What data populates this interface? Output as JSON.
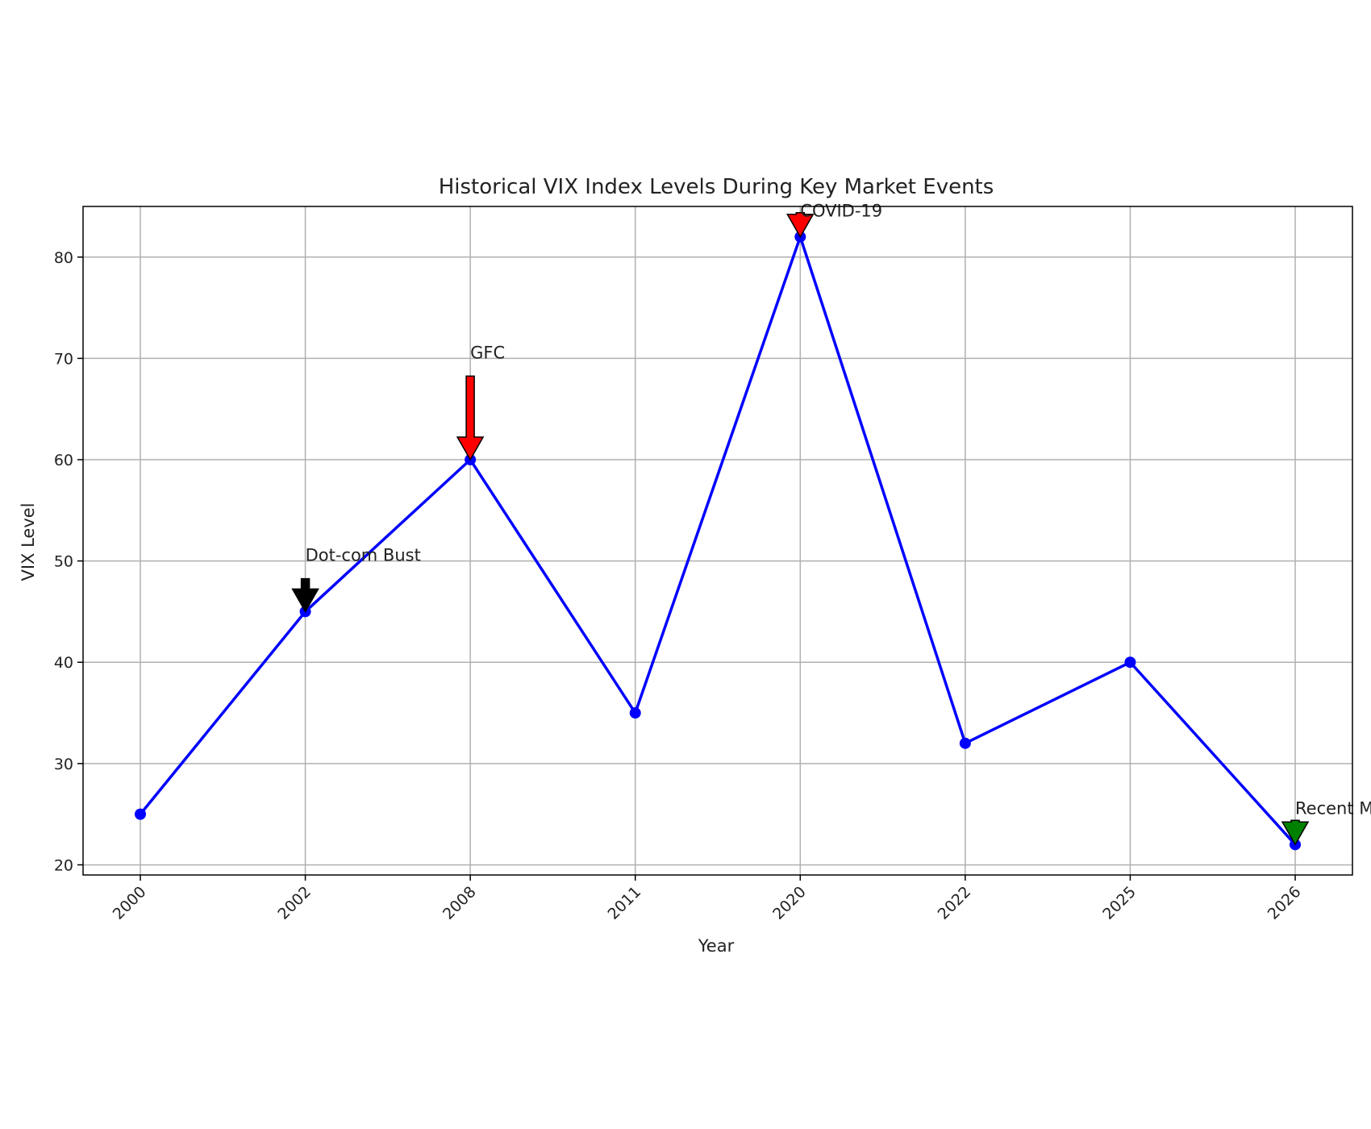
{
  "chart_data": {
    "type": "line",
    "title": "Historical VIX Index Levels During Key Market Events",
    "xlabel": "Year",
    "ylabel": "VIX Level",
    "categories": [
      "2000",
      "2002",
      "2008",
      "2011",
      "2020",
      "2022",
      "2025",
      "2026"
    ],
    "series": [
      {
        "values": [
          25,
          45,
          60,
          35,
          82,
          32,
          40,
          22
        ],
        "color": "#0000ff"
      }
    ],
    "ylim": [
      19,
      85
    ],
    "yticks": [
      20,
      30,
      40,
      50,
      60,
      70,
      80
    ],
    "grid": true,
    "annotations": [
      {
        "text": "Dot-com Bust",
        "category": "2002",
        "y": 45,
        "text_y": 50,
        "arrow_color": "#000000"
      },
      {
        "text": "GFC",
        "category": "2008",
        "y": 60,
        "text_y": 70,
        "arrow_color": "#ff0000"
      },
      {
        "text": "COVID-19",
        "category": "2020",
        "y": 82,
        "text_y": 84,
        "arrow_color": "#ff0000"
      },
      {
        "text": "Recent Moderate",
        "category": "2026",
        "y": 22,
        "text_y": 25,
        "arrow_color": "#008000"
      }
    ]
  }
}
